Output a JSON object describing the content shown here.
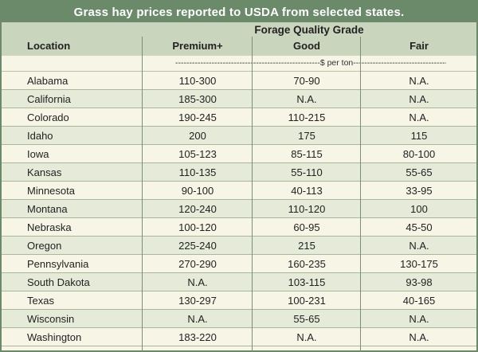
{
  "title": "Grass hay prices reported to USDA from selected states.",
  "header": {
    "location": "Location",
    "group": "Forage Quality Grade",
    "premium": "Premium+",
    "good": "Good",
    "fair": "Fair",
    "units": "----------------------------------------------------$ per ton----------------------------------------------------"
  },
  "rows": [
    {
      "location": "Alabama",
      "premium": "110-300",
      "good": "70-90",
      "fair": "N.A."
    },
    {
      "location": "California",
      "premium": "185-300",
      "good": "N.A.",
      "fair": "N.A."
    },
    {
      "location": "Colorado",
      "premium": "190-245",
      "good": "110-215",
      "fair": "N.A."
    },
    {
      "location": "Idaho",
      "premium": "200",
      "good": "175",
      "fair": "115"
    },
    {
      "location": "Iowa",
      "premium": "105-123",
      "good": "85-115",
      "fair": "80-100"
    },
    {
      "location": "Kansas",
      "premium": "110-135",
      "good": "55-110",
      "fair": "55-65"
    },
    {
      "location": "Minnesota",
      "premium": "90-100",
      "good": "40-113",
      "fair": "33-95"
    },
    {
      "location": "Montana",
      "premium": "120-240",
      "good": "110-120",
      "fair": "100"
    },
    {
      "location": "Nebraska",
      "premium": "100-120",
      "good": "60-95",
      "fair": "45-50"
    },
    {
      "location": "Oregon",
      "premium": "225-240",
      "good": "215",
      "fair": "N.A."
    },
    {
      "location": "Pennsylvania",
      "premium": "270-290",
      "good": "160-235",
      "fair": "130-175"
    },
    {
      "location": "South Dakota",
      "premium": "N.A.",
      "good": "103-115",
      "fair": "93-98"
    },
    {
      "location": "Texas",
      "premium": "130-297",
      "good": "100-231",
      "fair": "40-165"
    },
    {
      "location": "Wisconsin",
      "premium": "N.A.",
      "good": "55-65",
      "fair": "N.A."
    },
    {
      "location": "Washington",
      "premium": "183-220",
      "good": "N.A.",
      "fair": "N.A."
    }
  ]
}
